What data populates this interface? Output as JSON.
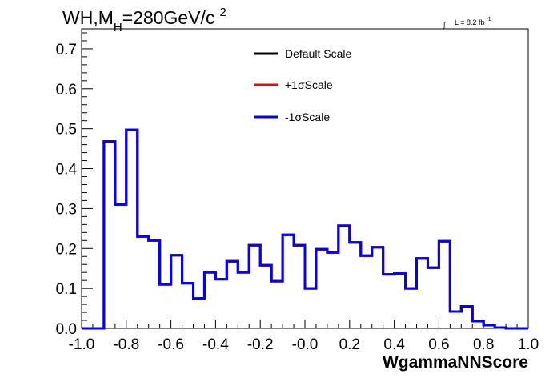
{
  "chart_data": {
    "type": "histogram",
    "title": {
      "main": "WH,M",
      "sub": "H",
      "rest": "=280GeV/c",
      "sup": "2"
    },
    "lumi": {
      "integral": "∫",
      "text": "L = 8.2 fb",
      "sup": "-1"
    },
    "xlabel": "WgammaNNScore",
    "ylabel": "",
    "xlim": [
      -1.0,
      1.0
    ],
    "ylim": [
      0.0,
      0.75
    ],
    "x_ticks": [
      "-1.0",
      "-0.8",
      "-0.6",
      "-0.4",
      "-0.2",
      "-0.0",
      "0.2",
      "0.4",
      "0.6",
      "0.8",
      "1.0"
    ],
    "y_ticks": [
      "0.0",
      "0.1",
      "0.2",
      "0.3",
      "0.4",
      "0.5",
      "0.6",
      "0.7"
    ],
    "bin_edges_start": -1.0,
    "bin_width": 0.05,
    "series": [
      {
        "name": "Default Scale",
        "color": "#000000"
      },
      {
        "name": "+1σScale",
        "color": "#ff0000"
      },
      {
        "name": "-1σScale",
        "color": "#0000ff"
      }
    ],
    "values": [
      0.0,
      0.0,
      0.468,
      0.31,
      0.497,
      0.23,
      0.22,
      0.11,
      0.183,
      0.113,
      0.075,
      0.14,
      0.123,
      0.168,
      0.14,
      0.208,
      0.158,
      0.118,
      0.234,
      0.208,
      0.1,
      0.198,
      0.19,
      0.257,
      0.215,
      0.182,
      0.203,
      0.135,
      0.137,
      0.1,
      0.175,
      0.152,
      0.218,
      0.042,
      0.055,
      0.018,
      0.008,
      0.002,
      0.0,
      0.0
    ],
    "legend_position": "top-center",
    "grid": false
  }
}
